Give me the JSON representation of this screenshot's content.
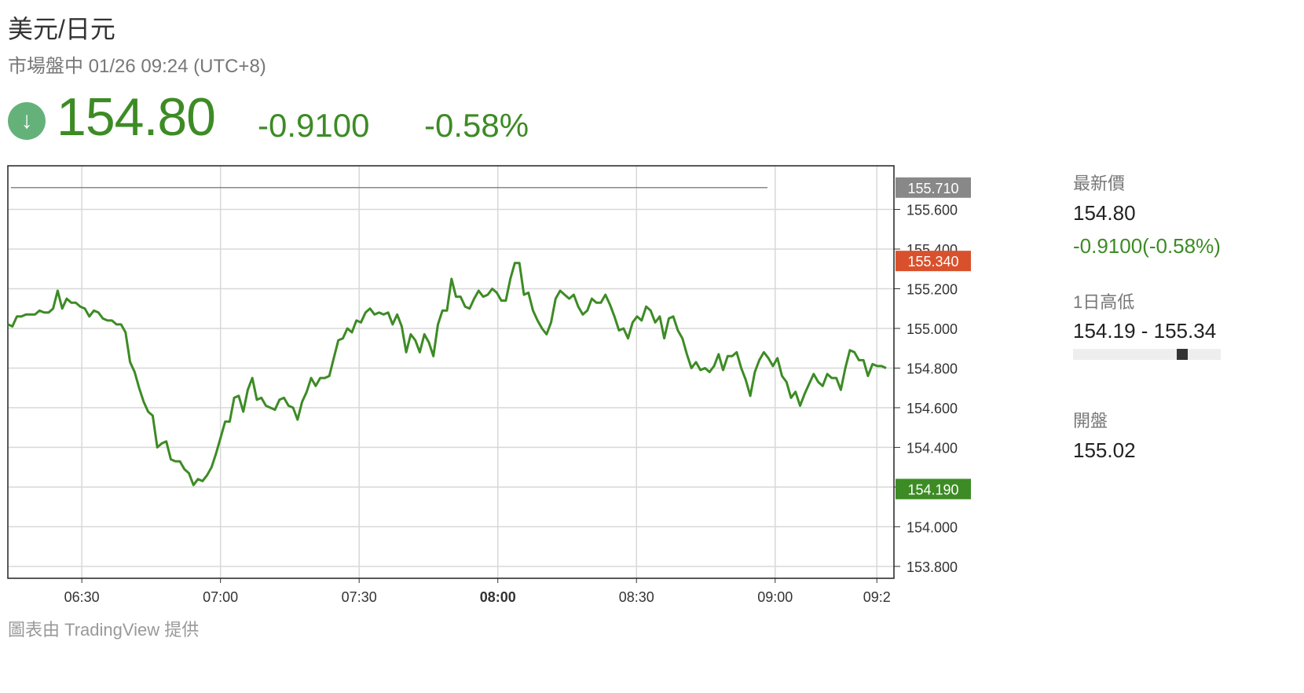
{
  "header": {
    "pair": "美元/日元",
    "status": "市場盤中 01/26 09:24 (UTC+8)",
    "price": "154.80",
    "change": "-0.9100",
    "change_pct": "-0.58%",
    "trend_icon": "arrow-down-icon",
    "trend_icon_glyph": "↓"
  },
  "stats": {
    "latest_label": "最新價",
    "latest_value": "154.80",
    "latest_change": "-0.9100(-0.58%)",
    "range_label": "1日高低",
    "range_value": "154.19 - 155.34",
    "range_position": 0.74,
    "open_label": "開盤",
    "open_value": "155.02"
  },
  "credit": "圖表由 TradingView 提供",
  "colors": {
    "up_down_green": "#3d8b25",
    "line": "#3d8b25",
    "high_marker": "#d9512c",
    "low_marker": "#3d8b25",
    "prev_close_marker": "#888888",
    "icon_bg": "#64b27a"
  },
  "chart_data": {
    "type": "line",
    "series": [
      {
        "values": [
          155.02,
          155.01,
          155.06,
          155.06,
          155.07,
          155.07,
          155.07,
          155.09,
          155.08,
          155.08,
          155.1,
          155.19,
          155.1,
          155.15,
          155.13,
          155.13,
          155.11,
          155.1,
          155.06,
          155.09,
          155.08,
          155.05,
          155.04,
          155.04,
          155.02,
          155.02,
          154.98,
          154.83,
          154.78,
          154.7,
          154.63,
          154.58,
          154.56,
          154.4,
          154.42,
          154.43,
          154.34,
          154.33,
          154.33,
          154.29,
          154.27,
          154.21,
          154.24,
          154.23,
          154.26,
          154.3,
          154.37,
          154.45,
          154.53,
          154.53,
          154.65,
          154.66,
          154.58,
          154.69,
          154.75,
          154.64,
          154.65,
          154.61,
          154.6,
          154.59,
          154.64,
          154.65,
          154.61,
          154.6,
          154.54,
          154.63,
          154.68,
          154.75,
          154.71,
          154.75,
          154.75,
          154.76,
          154.85,
          154.94,
          154.95,
          155.0,
          154.98,
          155.04,
          155.03,
          155.08,
          155.1,
          155.07,
          155.08,
          155.07,
          155.08,
          155.02,
          155.07,
          155.01,
          154.88,
          154.97,
          154.94,
          154.88,
          154.97,
          154.93,
          154.86,
          155.02,
          155.09,
          155.09,
          155.25,
          155.16,
          155.16,
          155.11,
          155.1,
          155.15,
          155.19,
          155.16,
          155.17,
          155.2,
          155.18,
          155.14,
          155.14,
          155.25,
          155.33,
          155.33,
          155.17,
          155.18,
          155.09,
          155.04,
          155.0,
          154.97,
          155.03,
          155.15,
          155.19,
          155.17,
          155.15,
          155.17,
          155.11,
          155.07,
          155.09,
          155.15,
          155.13,
          155.13,
          155.17,
          155.12,
          155.06,
          154.99,
          155.0,
          154.95,
          155.03,
          155.06,
          155.04,
          155.11,
          155.09,
          155.03,
          155.06,
          154.95,
          155.05,
          155.06,
          154.99,
          154.95,
          154.87,
          154.8,
          154.83,
          154.79,
          154.8,
          154.78,
          154.81,
          154.87,
          154.79,
          154.86,
          154.86,
          154.88,
          154.8,
          154.74,
          154.66,
          154.78,
          154.84,
          154.88,
          154.85,
          154.81,
          154.85,
          154.76,
          154.73,
          154.65,
          154.68,
          154.61,
          154.67,
          154.72,
          154.77,
          154.73,
          154.71,
          154.77,
          154.75,
          154.75,
          154.69,
          154.8,
          154.89,
          154.88,
          154.84,
          154.84,
          154.76,
          154.82,
          154.81,
          154.81,
          154.8
        ]
      }
    ],
    "x_start": "06:14",
    "x_end": "09:24",
    "x_ticks": [
      "06:30",
      "07:00",
      "07:30",
      "08:00",
      "08:30",
      "09:00",
      "09:2"
    ],
    "x_tick_bold": "08:00",
    "y_ticks": [
      "153.800",
      "154.000",
      "154.200",
      "154.400",
      "154.600",
      "154.800",
      "155.000",
      "155.200",
      "155.400",
      "155.600"
    ],
    "ylim": [
      153.74,
      155.82
    ],
    "markers": [
      {
        "label": "155.710",
        "value": 155.71,
        "kind": "prev_close"
      },
      {
        "label": "155.340",
        "value": 155.34,
        "kind": "high"
      },
      {
        "label": "154.190",
        "value": 154.19,
        "kind": "low"
      }
    ],
    "grid": true
  }
}
